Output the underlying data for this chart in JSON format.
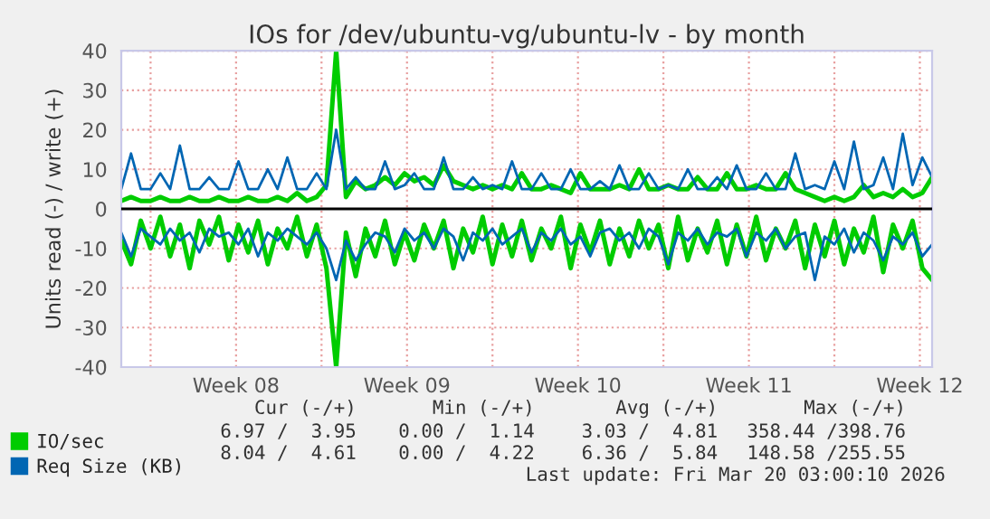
{
  "chart_data": {
    "type": "line",
    "title": "IOs for /dev/ubuntu-vg/ubuntu-lv - by month",
    "ylabel": "Units read (-) / write (+)",
    "x": [
      "2026-02-14T19:12",
      "2026-02-15T04:48",
      "2026-02-15T14:24",
      "2026-02-16T00:00",
      "2026-02-16T09:36",
      "2026-02-16T19:12",
      "2026-02-17T04:48",
      "2026-02-17T14:24",
      "2026-02-18T00:00",
      "2026-02-18T09:36",
      "2026-02-18T19:12",
      "2026-02-19T04:48",
      "2026-02-19T14:24",
      "2026-02-20T00:00",
      "2026-02-20T09:36",
      "2026-02-20T19:12",
      "2026-02-21T04:48",
      "2026-02-21T14:24",
      "2026-02-22T00:00",
      "2026-02-22T09:36",
      "2026-02-22T19:12",
      "2026-02-23T04:48",
      "2026-02-23T14:24",
      "2026-02-24T00:00",
      "2026-02-24T09:36",
      "2026-02-24T19:12",
      "2026-02-25T04:48",
      "2026-02-25T14:24",
      "2026-02-26T00:00",
      "2026-02-26T09:36",
      "2026-02-26T19:12",
      "2026-02-27T04:48",
      "2026-02-27T14:24",
      "2026-02-28T00:00",
      "2026-02-28T09:36",
      "2026-02-28T19:12",
      "2026-03-01T04:48",
      "2026-03-01T14:24",
      "2026-03-02T00:00",
      "2026-03-02T09:36",
      "2026-03-02T19:12",
      "2026-03-03T04:48",
      "2026-03-03T14:24",
      "2026-03-04T00:00",
      "2026-03-04T09:36",
      "2026-03-04T19:12",
      "2026-03-05T04:48",
      "2026-03-05T14:24",
      "2026-03-06T00:00",
      "2026-03-06T09:36",
      "2026-03-06T19:12",
      "2026-03-07T04:48",
      "2026-03-07T14:24",
      "2026-03-08T00:00",
      "2026-03-08T09:36",
      "2026-03-08T19:12",
      "2026-03-09T04:48",
      "2026-03-09T14:24",
      "2026-03-10T00:00",
      "2026-03-10T09:36",
      "2026-03-10T19:12",
      "2026-03-11T04:48",
      "2026-03-11T14:24",
      "2026-03-12T00:00",
      "2026-03-12T09:36",
      "2026-03-12T19:12",
      "2026-03-13T04:48",
      "2026-03-13T14:24",
      "2026-03-14T00:00",
      "2026-03-14T09:36",
      "2026-03-14T19:12",
      "2026-03-15T04:48",
      "2026-03-15T14:24",
      "2026-03-16T00:00",
      "2026-03-16T09:36",
      "2026-03-16T19:12",
      "2026-03-17T04:48",
      "2026-03-17T14:24",
      "2026-03-18T00:00",
      "2026-03-18T09:36",
      "2026-03-18T19:12",
      "2026-03-19T04:48",
      "2026-03-19T14:24",
      "2026-03-20T00:00"
    ],
    "series": [
      {
        "name": "IO/sec",
        "color": "#00cc00",
        "values": [
          2,
          3,
          2,
          2,
          3,
          2,
          2,
          3,
          2,
          2,
          3,
          2,
          2,
          3,
          2,
          2,
          3,
          2,
          4,
          2,
          3,
          6,
          40,
          3,
          7,
          5,
          6,
          8,
          6,
          9,
          7,
          8,
          6,
          11,
          7,
          6,
          5,
          6,
          5,
          6,
          5,
          9,
          5,
          5,
          6,
          5,
          4,
          9,
          5,
          5,
          5,
          6,
          5,
          10,
          5,
          5,
          6,
          5,
          5,
          8,
          5,
          5,
          9,
          5,
          5,
          6,
          5,
          5,
          9,
          5,
          4,
          3,
          2,
          3,
          2,
          3,
          6,
          3,
          4,
          3,
          5,
          3,
          4,
          8
        ]
      },
      {
        "color": "#00cc00",
        "values": [
          -8,
          -14,
          -3,
          -10,
          -2,
          -12,
          -4,
          -15,
          -3,
          -9,
          -2,
          -13,
          -4,
          -11,
          -3,
          -14,
          -5,
          -10,
          -2,
          -12,
          -4,
          -15,
          -40,
          -6,
          -17,
          -5,
          -12,
          -3,
          -14,
          -6,
          -13,
          -4,
          -10,
          -3,
          -15,
          -5,
          -11,
          -2,
          -14,
          -4,
          -12,
          -3,
          -13,
          -5,
          -10,
          -2,
          -15,
          -4,
          -11,
          -3,
          -14,
          -5,
          -12,
          -3,
          -10,
          -4,
          -15,
          -2,
          -13,
          -5,
          -11,
          -3,
          -14,
          -4,
          -12,
          -2,
          -13,
          -5,
          -10,
          -3,
          -15,
          -4,
          -12,
          -3,
          -14,
          -5,
          -11,
          -2,
          -16,
          -4,
          -10,
          -3,
          -15,
          -18
        ]
      },
      {
        "name": "Req Size (KB)",
        "color": "#0066b3",
        "values": [
          5,
          14,
          5,
          5,
          9,
          5,
          16,
          5,
          5,
          8,
          5,
          5,
          12,
          5,
          5,
          10,
          5,
          13,
          5,
          5,
          9,
          5,
          20,
          5,
          8,
          5,
          5,
          12,
          5,
          6,
          9,
          5,
          5,
          13,
          5,
          5,
          8,
          5,
          6,
          5,
          12,
          5,
          5,
          9,
          5,
          5,
          10,
          5,
          5,
          7,
          5,
          11,
          5,
          5,
          9,
          5,
          6,
          5,
          10,
          5,
          5,
          8,
          5,
          11,
          5,
          5,
          9,
          5,
          5,
          14,
          5,
          6,
          5,
          12,
          5,
          17,
          5,
          6,
          13,
          5,
          19,
          6,
          13,
          8
        ]
      },
      {
        "color": "#0066b3",
        "values": [
          -6,
          -12,
          -5,
          -7,
          -9,
          -5,
          -8,
          -6,
          -11,
          -5,
          -7,
          -6,
          -9,
          -5,
          -12,
          -6,
          -8,
          -5,
          -7,
          -9,
          -6,
          -10,
          -18,
          -8,
          -13,
          -9,
          -6,
          -7,
          -11,
          -5,
          -8,
          -6,
          -10,
          -5,
          -7,
          -13,
          -6,
          -8,
          -5,
          -9,
          -7,
          -5,
          -11,
          -6,
          -8,
          -5,
          -9,
          -7,
          -12,
          -6,
          -5,
          -8,
          -6,
          -10,
          -5,
          -7,
          -14,
          -6,
          -8,
          -5,
          -9,
          -6,
          -7,
          -5,
          -12,
          -6,
          -8,
          -5,
          -10,
          -7,
          -6,
          -18,
          -7,
          -9,
          -5,
          -11,
          -6,
          -8,
          -13,
          -7,
          -9,
          -6,
          -12,
          -9
        ]
      }
    ],
    "xlim": [
      "2026-02-14T19:12",
      "2026-03-20T00:00"
    ],
    "xticks": [
      {
        "value": "2026-02-16",
        "label": null
      },
      {
        "value": "2026-02-19T12:00",
        "label": "Week 08"
      },
      {
        "value": "2026-02-23",
        "label": null
      },
      {
        "value": "2026-02-26T12:00",
        "label": "Week 09"
      },
      {
        "value": "2026-03-02",
        "label": null
      },
      {
        "value": "2026-03-05T12:00",
        "label": "Week 10"
      },
      {
        "value": "2026-03-09",
        "label": null
      },
      {
        "value": "2026-03-12T12:00",
        "label": "Week 11"
      },
      {
        "value": "2026-03-16",
        "label": null
      },
      {
        "value": "2026-03-19T12:00",
        "label": "Week 12"
      }
    ],
    "ylim": [
      -40,
      40
    ],
    "yticks": [
      -40,
      -30,
      -20,
      -10,
      0,
      10,
      20,
      30,
      40
    ],
    "ref_lines": [
      {
        "axis": "y",
        "value": 0,
        "color": "#000000"
      }
    ],
    "grid": true,
    "legend": "bottom",
    "marker": "none",
    "line_style": "solid",
    "annotations": [
      "Cur (-/+)",
      "Min (-/+)",
      "Avg (-/+)",
      "Max (-/+)",
      "6.97 /  3.95",
      "0.00 /  1.14",
      "3.03 /  4.81",
      "358.44 /398.76",
      "8.04 /  4.61",
      "0.00 /  4.22",
      "6.36 /  5.84",
      "148.58 /255.55",
      "Last update: Fri Mar 20 03:00:10 2026"
    ]
  }
}
